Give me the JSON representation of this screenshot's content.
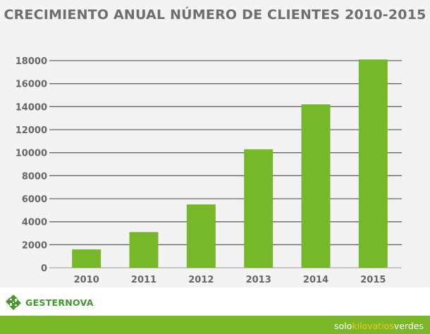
{
  "chart_data": {
    "type": "bar",
    "title": "CRECIMIENTO ANUAL NÚMERO DE CLIENTES 2010-2015",
    "xlabel": "",
    "ylabel": "",
    "categories": [
      "2010",
      "2011",
      "2012",
      "2013",
      "2014",
      "2015"
    ],
    "values": [
      1600,
      3100,
      5500,
      10300,
      14200,
      18100
    ],
    "ylim": [
      0,
      18000
    ],
    "yticks": [
      "0",
      "2000",
      "4000",
      "6000",
      "8000",
      "10000",
      "12000",
      "14000",
      "16000",
      "18000"
    ],
    "grid": true,
    "bar_color": "#77b82a"
  },
  "branding": {
    "logo_text": "GESTERNOVA",
    "logo_color": "#3e9a2c",
    "slogan_part1": "solo",
    "slogan_part2": "kilovatios",
    "slogan_part3": "verdes",
    "band_color": "#7ab829",
    "accent_color": "#f4c81e"
  }
}
